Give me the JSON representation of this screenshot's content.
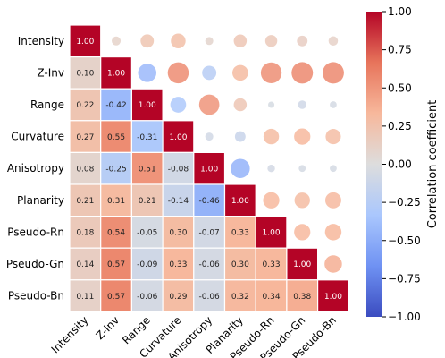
{
  "chart_data": {
    "type": "heatmap",
    "title": "",
    "xlabel": "",
    "ylabel": "",
    "variables": [
      "Intensity",
      "Z-Inv",
      "Range",
      "Curvature",
      "Anisotropy",
      "Planarity",
      "Pseudo-Rn",
      "Pseudo-Gn",
      "Pseudo-Bn"
    ],
    "lower_triangle_display": "annotated colored cells",
    "upper_triangle_display": "circles sized and colored by correlation",
    "matrix": [
      [
        1.0,
        0.1,
        0.22,
        0.27,
        0.08,
        0.21,
        0.18,
        0.14,
        0.11
      ],
      [
        0.1,
        1.0,
        -0.42,
        0.55,
        -0.25,
        0.31,
        0.54,
        0.57,
        0.57
      ],
      [
        0.22,
        -0.42,
        1.0,
        -0.31,
        0.51,
        0.21,
        -0.05,
        -0.09,
        -0.06
      ],
      [
        0.27,
        0.55,
        -0.31,
        1.0,
        -0.08,
        -0.14,
        0.3,
        0.33,
        0.29
      ],
      [
        0.08,
        -0.25,
        0.51,
        -0.08,
        1.0,
        -0.46,
        -0.07,
        -0.06,
        -0.06
      ],
      [
        0.21,
        0.31,
        0.21,
        -0.14,
        -0.46,
        1.0,
        0.33,
        0.3,
        0.32
      ],
      [
        0.18,
        0.54,
        -0.05,
        0.3,
        -0.07,
        0.33,
        1.0,
        0.33,
        0.34
      ],
      [
        0.14,
        0.57,
        -0.09,
        0.33,
        -0.06,
        0.3,
        0.33,
        1.0,
        0.38
      ],
      [
        0.11,
        0.57,
        -0.06,
        0.29,
        -0.06,
        0.32,
        0.34,
        0.38,
        1.0
      ]
    ],
    "value_labels": [
      [
        "1.00"
      ],
      [
        "0.10",
        "1.00"
      ],
      [
        "0.22",
        "-0.42",
        "1.00"
      ],
      [
        "0.27",
        "0.55",
        "-0.31",
        "1.00"
      ],
      [
        "0.08",
        "-0.25",
        "0.51",
        "-0.08",
        "1.00"
      ],
      [
        "0.21",
        "0.31",
        "0.21",
        "-0.14",
        "-0.46",
        "1.00"
      ],
      [
        "0.18",
        "0.54",
        "-0.05",
        "0.30",
        "-0.07",
        "0.33",
        "1.00"
      ],
      [
        "0.14",
        "0.57",
        "-0.09",
        "0.33",
        "-0.06",
        "0.30",
        "0.33",
        "1.00"
      ],
      [
        "0.11",
        "0.57",
        "-0.06",
        "0.29",
        "-0.06",
        "0.32",
        "0.34",
        "0.38",
        "1.00"
      ]
    ],
    "colormap": "coolwarm",
    "colormap_stops": [
      "#3b4cc0",
      "#6f92f3",
      "#aac7fd",
      "#dddddd",
      "#f7b89c",
      "#e7745b",
      "#b40426"
    ],
    "grid": false,
    "colorbar": {
      "label": "Correlation coefficient",
      "range": [
        -1.0,
        1.0
      ],
      "ticks": [
        -1.0,
        -0.75,
        -0.5,
        -0.25,
        0.0,
        0.25,
        0.5,
        0.75,
        1.0
      ],
      "tick_labels": [
        "−1.00",
        "−0.75",
        "−0.50",
        "−0.25",
        "0.00",
        "0.25",
        "0.50",
        "0.75",
        "1.00"
      ],
      "position": "right"
    }
  }
}
